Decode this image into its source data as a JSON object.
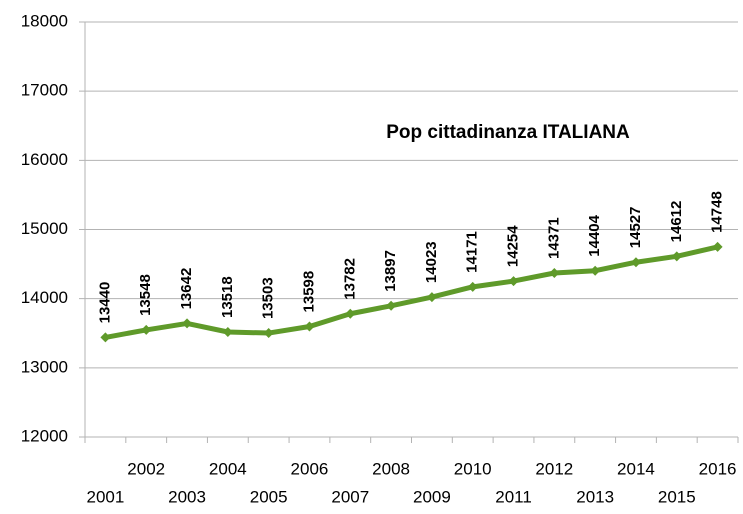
{
  "chart_data": {
    "type": "line",
    "title": "Pop cittadinanza ITALIANA",
    "categories": [
      "2001",
      "2002",
      "2003",
      "2004",
      "2005",
      "2006",
      "2007",
      "2008",
      "2009",
      "2010",
      "2011",
      "2012",
      "2013",
      "2014",
      "2015",
      "2016"
    ],
    "series": [
      {
        "name": "Pop cittadinanza ITALIANA",
        "color": "#5f9a2a",
        "values": [
          13440,
          13548,
          13642,
          13518,
          13503,
          13598,
          13782,
          13897,
          14023,
          14171,
          14254,
          14371,
          14404,
          14527,
          14612,
          14748
        ]
      }
    ],
    "ylim": [
      12000,
      18000
    ],
    "yticks": [
      12000,
      13000,
      14000,
      15000,
      16000,
      17000,
      18000
    ],
    "grid": true
  }
}
